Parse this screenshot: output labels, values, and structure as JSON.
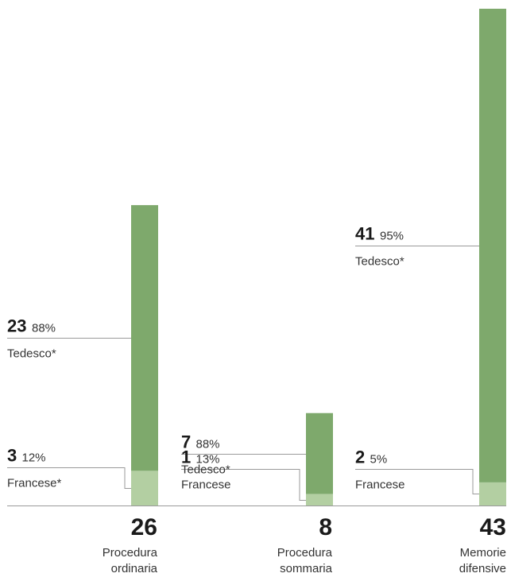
{
  "colors": {
    "dark_segment": "#7ea96c",
    "light_segment": "#b3cfa2",
    "leader_line": "#9a9a9a",
    "baseline": "#9a9a9a"
  },
  "chart_data": {
    "type": "bar",
    "stacked": true,
    "title": "",
    "xlabel": "",
    "ylabel": "",
    "ylim": [
      0,
      43
    ],
    "grid": false,
    "legend": "none",
    "categories": [
      {
        "label_lines": [
          "Procedura",
          "ordinaria"
        ],
        "total": 26
      },
      {
        "label_lines": [
          "Procedura",
          "sommaria"
        ],
        "total": 8
      },
      {
        "label_lines": [
          "Memorie",
          "difensive"
        ],
        "total": 43
      }
    ],
    "series": [
      {
        "name": "Francese",
        "color": "#b3cfa2",
        "labels": [
          "Francese*",
          "Francese",
          "Francese"
        ],
        "values": [
          3,
          1,
          2
        ],
        "percent_labels": [
          "12%",
          "13%",
          "5%"
        ]
      },
      {
        "name": "Tedesco",
        "color": "#7ea96c",
        "labels": [
          "Tedesco*",
          "Tedesco*",
          "Tedesco*"
        ],
        "values": [
          23,
          7,
          41
        ],
        "percent_labels": [
          "88%",
          "88%",
          "95%"
        ]
      }
    ]
  }
}
